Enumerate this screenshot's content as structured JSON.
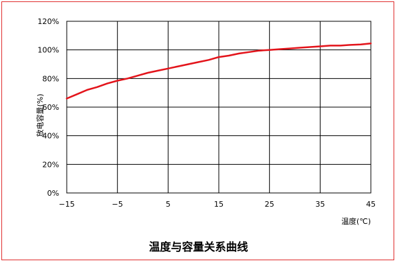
{
  "chart_data": {
    "type": "line",
    "title": "温度与容量关系曲线",
    "xlabel": "温度(℃)",
    "ylabel": "放电容量(%)",
    "x_ticks": [
      "−15",
      "−5",
      "5",
      "15",
      "25",
      "35",
      "45"
    ],
    "y_ticks": [
      "0%",
      "20%",
      "40%",
      "60%",
      "80%",
      "100%",
      "120%"
    ],
    "xlim": [
      -15,
      45
    ],
    "ylim": [
      0,
      120
    ],
    "grid": true,
    "series": [
      {
        "color": "#e3141b",
        "x": [
          -15,
          -13,
          -11,
          -9,
          -7,
          -5,
          -3,
          -1,
          1,
          3,
          5,
          7,
          9,
          11,
          13,
          15,
          17,
          19,
          21,
          23,
          25,
          27,
          29,
          31,
          33,
          35,
          37,
          39,
          41,
          43,
          45
        ],
        "y": [
          66,
          69,
          72,
          74,
          76.5,
          78.5,
          80,
          82,
          84,
          85.5,
          87,
          88.5,
          90,
          91.5,
          93,
          95,
          96,
          97.5,
          98.5,
          99.5,
          100,
          100.5,
          101,
          101.5,
          102,
          102.5,
          103,
          103,
          103.5,
          103.8,
          104.5
        ]
      }
    ]
  }
}
